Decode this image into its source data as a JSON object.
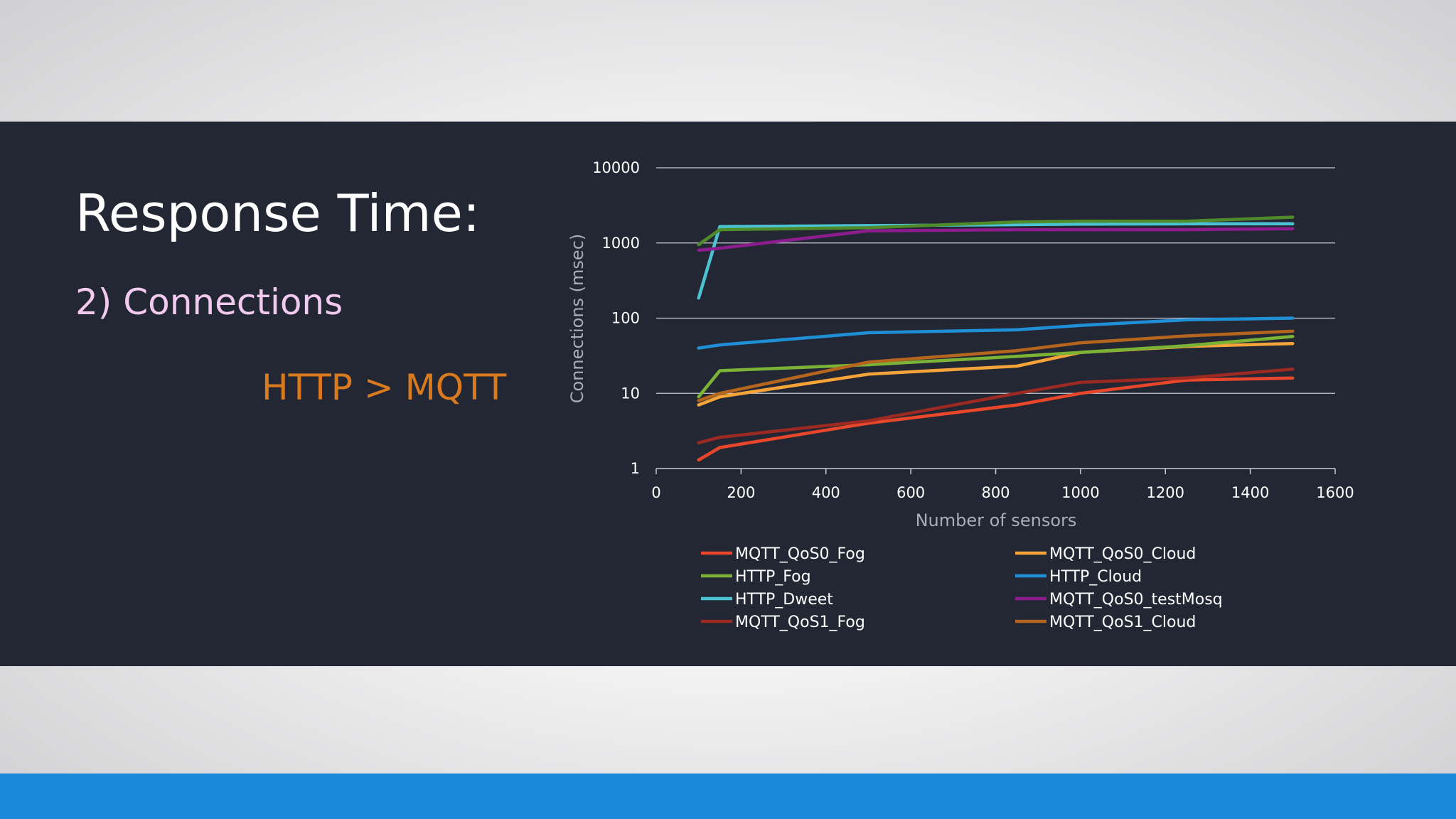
{
  "slide": {
    "title": "Response Time:",
    "subtitle": "2) Connections",
    "note": "HTTP > MQTT"
  },
  "colors": {
    "band": "#222733",
    "footer_bar": "#1a8ad8",
    "subtitle": "#f2c9ef",
    "note": "#d97a1e"
  },
  "chart_data": {
    "type": "line",
    "title": "",
    "xlabel": "Number of sensors",
    "ylabel": "Connections (msec)",
    "xlim": [
      0,
      1600
    ],
    "ylim": [
      1,
      10000
    ],
    "yscale": "log",
    "x_ticks": [
      "0",
      "200",
      "400",
      "600",
      "800",
      "1000",
      "1200",
      "1400",
      "1600"
    ],
    "y_ticks": [
      "1",
      "10",
      "100",
      "1000",
      "10000"
    ],
    "grid": true,
    "legend_position": "bottom",
    "series": [
      {
        "name": "MQTT_QoS0_Fog",
        "color": "#e8472b",
        "x": [
          100,
          150,
          500,
          850,
          1000,
          1250,
          1500
        ],
        "values": [
          1.3,
          1.9,
          4,
          7,
          10,
          15,
          16
        ]
      },
      {
        "name": "MQTT_QoS0_Cloud",
        "color": "#f5a43a",
        "x": [
          100,
          150,
          500,
          850,
          1000,
          1250,
          1500
        ],
        "values": [
          7,
          9,
          18,
          23,
          35,
          42,
          46
        ]
      },
      {
        "name": "HTTP_Fog",
        "color": "#7ab336",
        "x": [
          100,
          150,
          500,
          850,
          1000,
          1250,
          1500
        ],
        "values": [
          9,
          20,
          24,
          31,
          35,
          43,
          57
        ]
      },
      {
        "name": "HTTP_Cloud",
        "color": "#1f8fd6",
        "x": [
          100,
          150,
          500,
          850,
          1000,
          1250,
          1500
        ],
        "values": [
          40,
          44,
          64,
          70,
          80,
          95,
          100
        ]
      },
      {
        "name": "HTTP_Dweet",
        "color": "#4cc3d3",
        "x": [
          100,
          150,
          500,
          850,
          1000,
          1250,
          1500
        ],
        "values": [
          185,
          1650,
          1700,
          1750,
          1780,
          1800,
          1800
        ]
      },
      {
        "name": "MQTT_QoS0_testMosq",
        "color": "#8d1d8f",
        "x": [
          100,
          150,
          500,
          850,
          1000,
          1250,
          1500
        ],
        "values": [
          800,
          850,
          1450,
          1500,
          1500,
          1500,
          1550
        ]
      },
      {
        "name": "MQTT_QoS1_Fog",
        "color": "#9b2a22",
        "x": [
          100,
          150,
          500,
          850,
          1000,
          1250,
          1500
        ],
        "values": [
          2.2,
          2.6,
          4.3,
          10,
          14,
          16,
          21
        ]
      },
      {
        "name": "MQTT_QoS1_Cloud",
        "color": "#b5651d",
        "x": [
          100,
          150,
          500,
          850,
          1000,
          1250,
          1500
        ],
        "values": [
          8,
          10,
          26,
          37,
          47,
          58,
          67
        ]
      },
      {
        "name": "",
        "color": "#4f8a2b",
        "x": [
          100,
          150,
          500,
          850,
          1000,
          1250,
          1500
        ],
        "values": [
          950,
          1500,
          1600,
          1900,
          1950,
          1950,
          2200
        ]
      }
    ]
  }
}
